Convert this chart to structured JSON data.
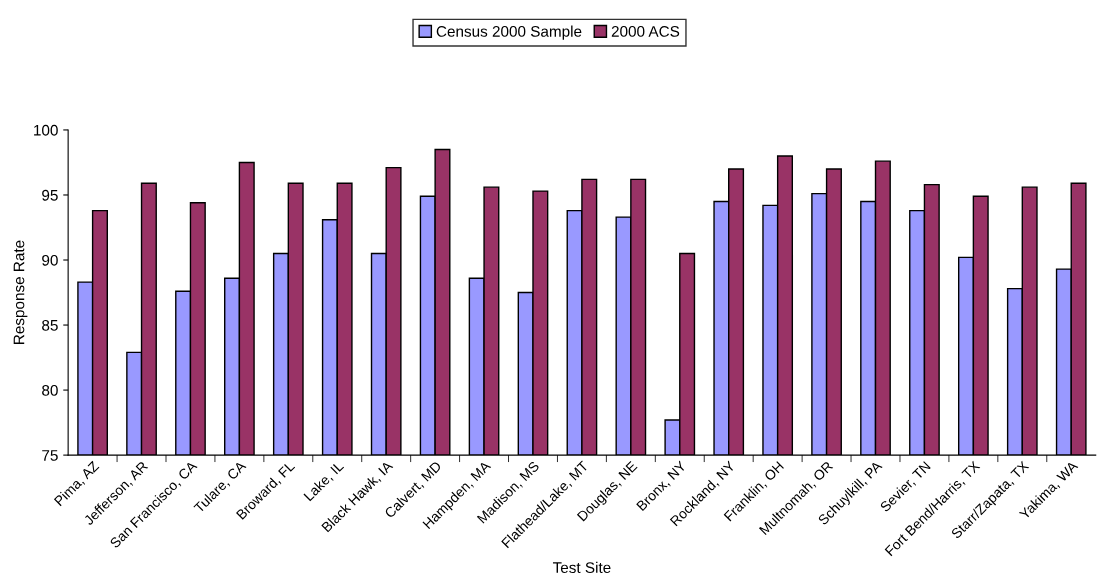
{
  "chart_data": {
    "type": "bar",
    "xlabel": "Test Site",
    "ylabel": "Response Rate",
    "categories": [
      "Pima, AZ",
      "Jefferson, AR",
      "San Francisco, CA",
      "Tulare, CA",
      "Broward, FL",
      "Lake, IL",
      "Black Hawk, IA",
      "Calvert, MD",
      "Hampden, MA",
      "Madison, MS",
      "Flathead/Lake, MT",
      "Douglas, NE",
      "Bronx, NY",
      "Rockland, NY",
      "Franklin, OH",
      "Multnomah, OR",
      "Schuylkill, PA",
      "Sevier, TN",
      "Fort Bend/Harris, TX",
      "Starr/Zapata, TX",
      "Yakima, WA"
    ],
    "series": [
      {
        "name": "Census 2000 Sample",
        "color": "#9999ff",
        "values": [
          88.3,
          82.9,
          87.6,
          88.6,
          90.5,
          93.1,
          90.5,
          94.9,
          88.6,
          87.5,
          93.8,
          93.3,
          77.7,
          94.5,
          94.2,
          95.1,
          94.5,
          93.8,
          90.2,
          87.8,
          89.3
        ]
      },
      {
        "name": "2000 ACS",
        "color": "#993366",
        "values": [
          93.8,
          95.9,
          94.4,
          97.5,
          95.9,
          95.9,
          97.1,
          98.5,
          95.6,
          95.3,
          96.2,
          96.2,
          90.5,
          97.0,
          98.0,
          97.0,
          97.6,
          95.8,
          94.9,
          95.6,
          95.9
        ]
      }
    ],
    "ylim": [
      75,
      100
    ],
    "yticks": [
      75,
      80,
      85,
      90,
      95,
      100
    ],
    "grid": false,
    "legend": "top"
  }
}
